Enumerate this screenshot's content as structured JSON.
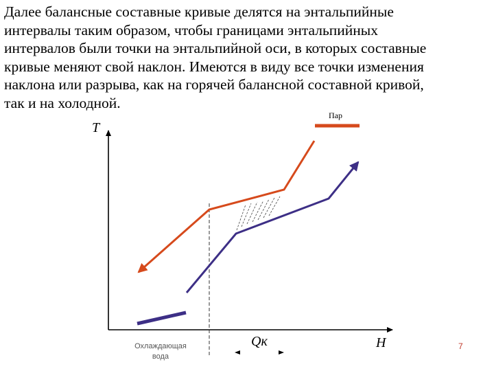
{
  "slide": {
    "text": "Далее балансные составные кривые делятся на энтальпийные\nинтервалы таким образом, чтобы границами энтальпийных\nинтервалов были точки на энтальпийной оси, в которых составные\nкривые меняют свой наклон. Имеются в виду все точки изменения\nнаклона или разрыва, как на горячей балансной составной кривой,\nтак и на холодной.",
    "page_number": "7"
  },
  "diagram": {
    "axis_y_label": "T",
    "axis_x_label": "H",
    "steam_label": "Пар",
    "cooling_water_label_line1": "Охлаждающая",
    "cooling_water_label_line2": "вода",
    "qk_label": "Qк",
    "hot_color": "#d64a1c",
    "cold_color": "#3d2f86"
  }
}
